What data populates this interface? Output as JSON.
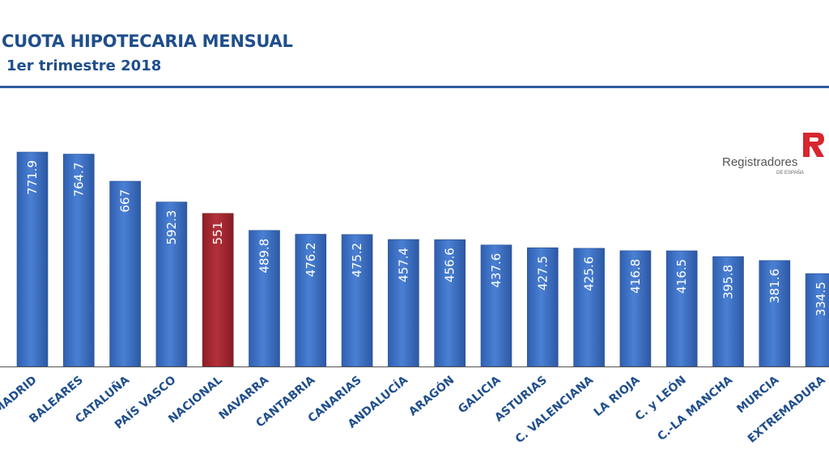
{
  "header": {
    "title": "CUOTA HIPOTECARIA MENSUAL",
    "subtitle": "1er trimestre 2018"
  },
  "logo": {
    "wordmark": "Registradores",
    "tagline": "DE ESPAÑA",
    "mark_letter": "R"
  },
  "colors": {
    "title": "#1f4e8c",
    "bar_default": "#3f74c8",
    "bar_highlight": "#a7262e",
    "baseline": "#555555",
    "label": "#1f4e8c",
    "logo_red": "#d7262e"
  },
  "chart_data": {
    "type": "bar",
    "title": "CUOTA HIPOTECARIA MENSUAL",
    "subtitle": "1er trimestre 2018",
    "xlabel": "",
    "ylabel": "",
    "ylim": [
      0,
      800
    ],
    "grid": false,
    "legend": "none",
    "highlight": "NACIONAL",
    "categories": [
      "MADRID",
      "BALEARES",
      "CATALUÑA",
      "PAÍS VASCO",
      "NACIONAL",
      "NAVARRA",
      "CANTABRIA",
      "CANARIAS",
      "ANDALUCÍA",
      "ARAGÓN",
      "GALICIA",
      "ASTURIAS",
      "C. VALENCIANA",
      "LA RIOJA",
      "C. y LEÓN",
      "C.-LA MANCHA",
      "MURCIA",
      "EXTREMADURA"
    ],
    "values": [
      771.9,
      764.7,
      667,
      592.3,
      551,
      489.8,
      476.2,
      475.2,
      457.4,
      456.6,
      437.6,
      427.5,
      425.6,
      416.8,
      416.5,
      395.8,
      381.6,
      334.5
    ],
    "value_labels": [
      "771.9",
      "764.7",
      "667",
      "592.3",
      "551",
      "489.8",
      "476.2",
      "475.2",
      "457.4",
      "456.6",
      "437.6",
      "427.5",
      "425.6",
      "416.8",
      "416.5",
      "395.8",
      "381.6",
      "334.5"
    ]
  }
}
